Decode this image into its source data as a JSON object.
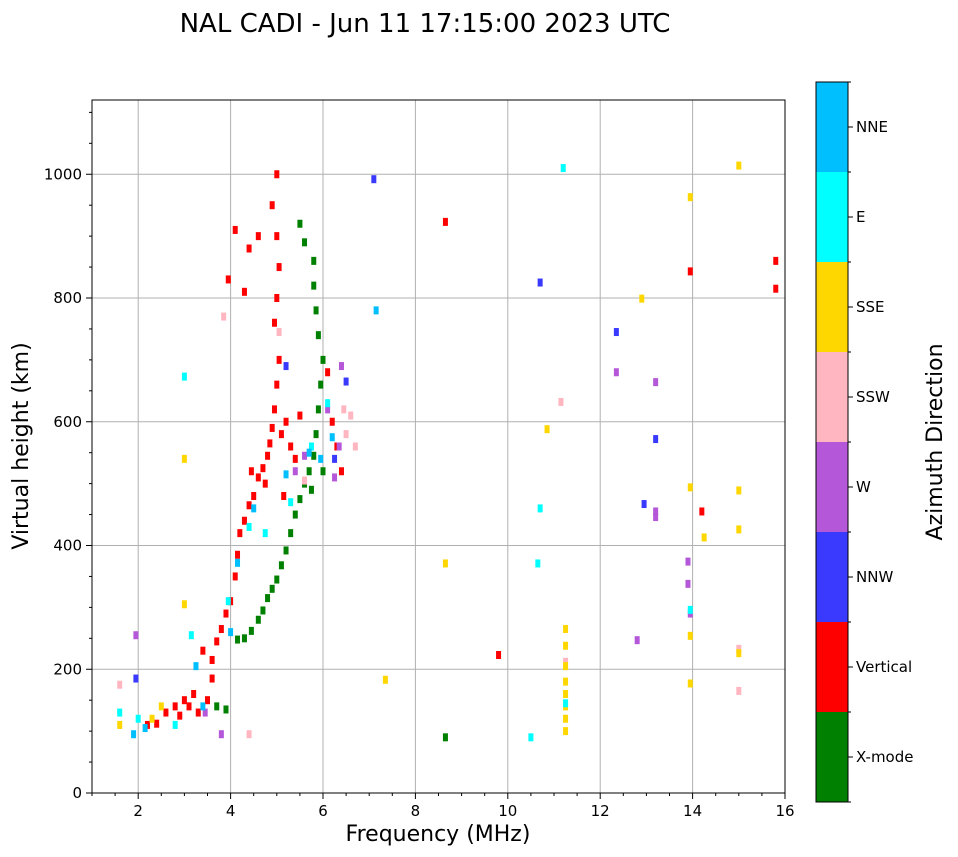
{
  "chart_data": {
    "type": "scatter",
    "title": "NAL CADI - Jun 11 17:15:00 2023 UTC",
    "xlabel": "Frequency (MHz)",
    "ylabel": "Virtual height (km)",
    "xlim": [
      1,
      16
    ],
    "ylim": [
      0,
      1120
    ],
    "xticks": [
      2,
      4,
      6,
      8,
      10,
      12,
      14,
      16
    ],
    "yticks": [
      0,
      200,
      400,
      600,
      800,
      1000
    ],
    "grid": true,
    "colorbar": {
      "title": "Azimuth Direction",
      "categories": [
        {
          "name": "X-mode",
          "color": "#008000"
        },
        {
          "name": "Vertical",
          "color": "#ff0000"
        },
        {
          "name": "NNW",
          "color": "#3a3aff"
        },
        {
          "name": "W",
          "color": "#b557d9"
        },
        {
          "name": "SSW",
          "color": "#ffb6c1"
        },
        {
          "name": "SSE",
          "color": "#ffd700"
        },
        {
          "name": "E",
          "color": "#00ffff"
        },
        {
          "name": "NNE",
          "color": "#00bfff"
        }
      ]
    },
    "series": [
      {
        "name": "X-mode",
        "points": [
          [
            4.15,
            248
          ],
          [
            4.3,
            250
          ],
          [
            4.45,
            262
          ],
          [
            4.6,
            280
          ],
          [
            4.7,
            295
          ],
          [
            4.8,
            315
          ],
          [
            4.9,
            330
          ],
          [
            5.0,
            345
          ],
          [
            5.1,
            368
          ],
          [
            5.2,
            392
          ],
          [
            5.3,
            420
          ],
          [
            5.4,
            450
          ],
          [
            5.5,
            475
          ],
          [
            5.6,
            500
          ],
          [
            5.7,
            520
          ],
          [
            5.8,
            545
          ],
          [
            5.85,
            580
          ],
          [
            5.9,
            620
          ],
          [
            5.95,
            660
          ],
          [
            6.0,
            700
          ],
          [
            5.9,
            740
          ],
          [
            5.85,
            780
          ],
          [
            5.8,
            820
          ],
          [
            5.8,
            860
          ],
          [
            5.6,
            890
          ],
          [
            5.5,
            920
          ],
          [
            3.7,
            140
          ],
          [
            3.9,
            135
          ],
          [
            8.65,
            90
          ],
          [
            6.0,
            520
          ],
          [
            5.75,
            490
          ]
        ]
      },
      {
        "name": "Vertical",
        "points": [
          [
            2.2,
            110
          ],
          [
            2.4,
            112
          ],
          [
            2.6,
            130
          ],
          [
            2.8,
            140
          ],
          [
            3.0,
            150
          ],
          [
            3.1,
            140
          ],
          [
            3.3,
            130
          ],
          [
            3.5,
            150
          ],
          [
            3.6,
            215
          ],
          [
            3.4,
            230
          ],
          [
            3.7,
            245
          ],
          [
            3.8,
            265
          ],
          [
            3.9,
            290
          ],
          [
            4.0,
            310
          ],
          [
            4.1,
            350
          ],
          [
            4.15,
            385
          ],
          [
            4.2,
            420
          ],
          [
            4.3,
            440
          ],
          [
            4.4,
            465
          ],
          [
            4.5,
            480
          ],
          [
            4.6,
            510
          ],
          [
            4.7,
            525
          ],
          [
            4.8,
            545
          ],
          [
            4.85,
            565
          ],
          [
            4.9,
            590
          ],
          [
            4.95,
            620
          ],
          [
            5.0,
            660
          ],
          [
            5.1,
            580
          ],
          [
            5.2,
            600
          ],
          [
            5.3,
            560
          ],
          [
            5.4,
            540
          ],
          [
            5.5,
            610
          ],
          [
            5.05,
            700
          ],
          [
            4.95,
            760
          ],
          [
            5.0,
            800
          ],
          [
            5.05,
            850
          ],
          [
            5.0,
            900
          ],
          [
            4.9,
            950
          ],
          [
            5.0,
            1000
          ],
          [
            4.4,
            880
          ],
          [
            4.6,
            900
          ],
          [
            4.1,
            910
          ],
          [
            3.95,
            830
          ],
          [
            4.3,
            810
          ],
          [
            6.2,
            600
          ],
          [
            6.3,
            560
          ],
          [
            6.1,
            680
          ],
          [
            6.4,
            520
          ],
          [
            5.15,
            480
          ],
          [
            4.75,
            500
          ],
          [
            4.45,
            520
          ],
          [
            8.65,
            923
          ],
          [
            9.8,
            223
          ],
          [
            13.95,
            843
          ],
          [
            14.2,
            455
          ],
          [
            15.8,
            860
          ],
          [
            15.8,
            815
          ],
          [
            2.9,
            125
          ],
          [
            3.2,
            160
          ],
          [
            3.6,
            185
          ]
        ]
      },
      {
        "name": "NNW",
        "points": [
          [
            7.1,
            992
          ],
          [
            12.35,
            745
          ],
          [
            13.2,
            572
          ],
          [
            12.95,
            467
          ],
          [
            10.7,
            825
          ],
          [
            5.2,
            690
          ],
          [
            6.5,
            665
          ],
          [
            6.25,
            540
          ],
          [
            1.95,
            185
          ]
        ]
      },
      {
        "name": "W",
        "points": [
          [
            1.95,
            255
          ],
          [
            3.8,
            95
          ],
          [
            6.1,
            620
          ],
          [
            6.4,
            690
          ],
          [
            6.35,
            560
          ],
          [
            12.35,
            680
          ],
          [
            13.2,
            664
          ],
          [
            13.2,
            455
          ],
          [
            13.2,
            446
          ],
          [
            12.8,
            247
          ],
          [
            13.9,
            374
          ],
          [
            13.9,
            338
          ],
          [
            13.95,
            290
          ],
          [
            5.6,
            545
          ],
          [
            5.4,
            520
          ],
          [
            6.25,
            510
          ],
          [
            3.45,
            130
          ]
        ]
      },
      {
        "name": "SSW",
        "points": [
          [
            1.6,
            175
          ],
          [
            4.4,
            95
          ],
          [
            3.85,
            770
          ],
          [
            5.05,
            745
          ],
          [
            6.6,
            610
          ],
          [
            6.7,
            560
          ],
          [
            6.45,
            620
          ],
          [
            6.5,
            580
          ],
          [
            11.15,
            632
          ],
          [
            11.25,
            212
          ],
          [
            15.0,
            233
          ],
          [
            15.0,
            165
          ],
          [
            5.6,
            505
          ]
        ]
      },
      {
        "name": "SSE",
        "points": [
          [
            3.0,
            540
          ],
          [
            3.0,
            305
          ],
          [
            2.5,
            140
          ],
          [
            7.35,
            183
          ],
          [
            8.65,
            371
          ],
          [
            10.85,
            588
          ],
          [
            11.25,
            265
          ],
          [
            11.25,
            238
          ],
          [
            11.25,
            205
          ],
          [
            11.25,
            180
          ],
          [
            11.25,
            160
          ],
          [
            11.25,
            140
          ],
          [
            11.25,
            120
          ],
          [
            11.25,
            100
          ],
          [
            12.9,
            799
          ],
          [
            13.95,
            963
          ],
          [
            13.95,
            494
          ],
          [
            13.95,
            254
          ],
          [
            13.95,
            177
          ],
          [
            14.25,
            413
          ],
          [
            15.0,
            1014
          ],
          [
            15.0,
            489
          ],
          [
            15.0,
            426
          ],
          [
            15.0,
            226
          ],
          [
            2.3,
            120
          ],
          [
            1.6,
            110
          ]
        ]
      },
      {
        "name": "E",
        "points": [
          [
            3.0,
            673
          ],
          [
            11.2,
            1010
          ],
          [
            10.7,
            460
          ],
          [
            10.65,
            371
          ],
          [
            10.5,
            90
          ],
          [
            11.25,
            145
          ],
          [
            13.95,
            296
          ],
          [
            6.1,
            630
          ],
          [
            5.75,
            560
          ],
          [
            5.3,
            470
          ],
          [
            4.75,
            420
          ],
          [
            4.4,
            430
          ],
          [
            3.95,
            310
          ],
          [
            3.15,
            255
          ],
          [
            2.0,
            120
          ],
          [
            1.6,
            130
          ],
          [
            2.8,
            110
          ]
        ]
      },
      {
        "name": "NNE",
        "points": [
          [
            7.15,
            780
          ],
          [
            6.2,
            575
          ],
          [
            5.95,
            540
          ],
          [
            5.7,
            550
          ],
          [
            5.2,
            515
          ],
          [
            4.5,
            460
          ],
          [
            3.25,
            205
          ],
          [
            1.9,
            95
          ],
          [
            2.15,
            105
          ],
          [
            4.15,
            372
          ],
          [
            4.0,
            260
          ],
          [
            3.4,
            140
          ]
        ]
      }
    ]
  }
}
